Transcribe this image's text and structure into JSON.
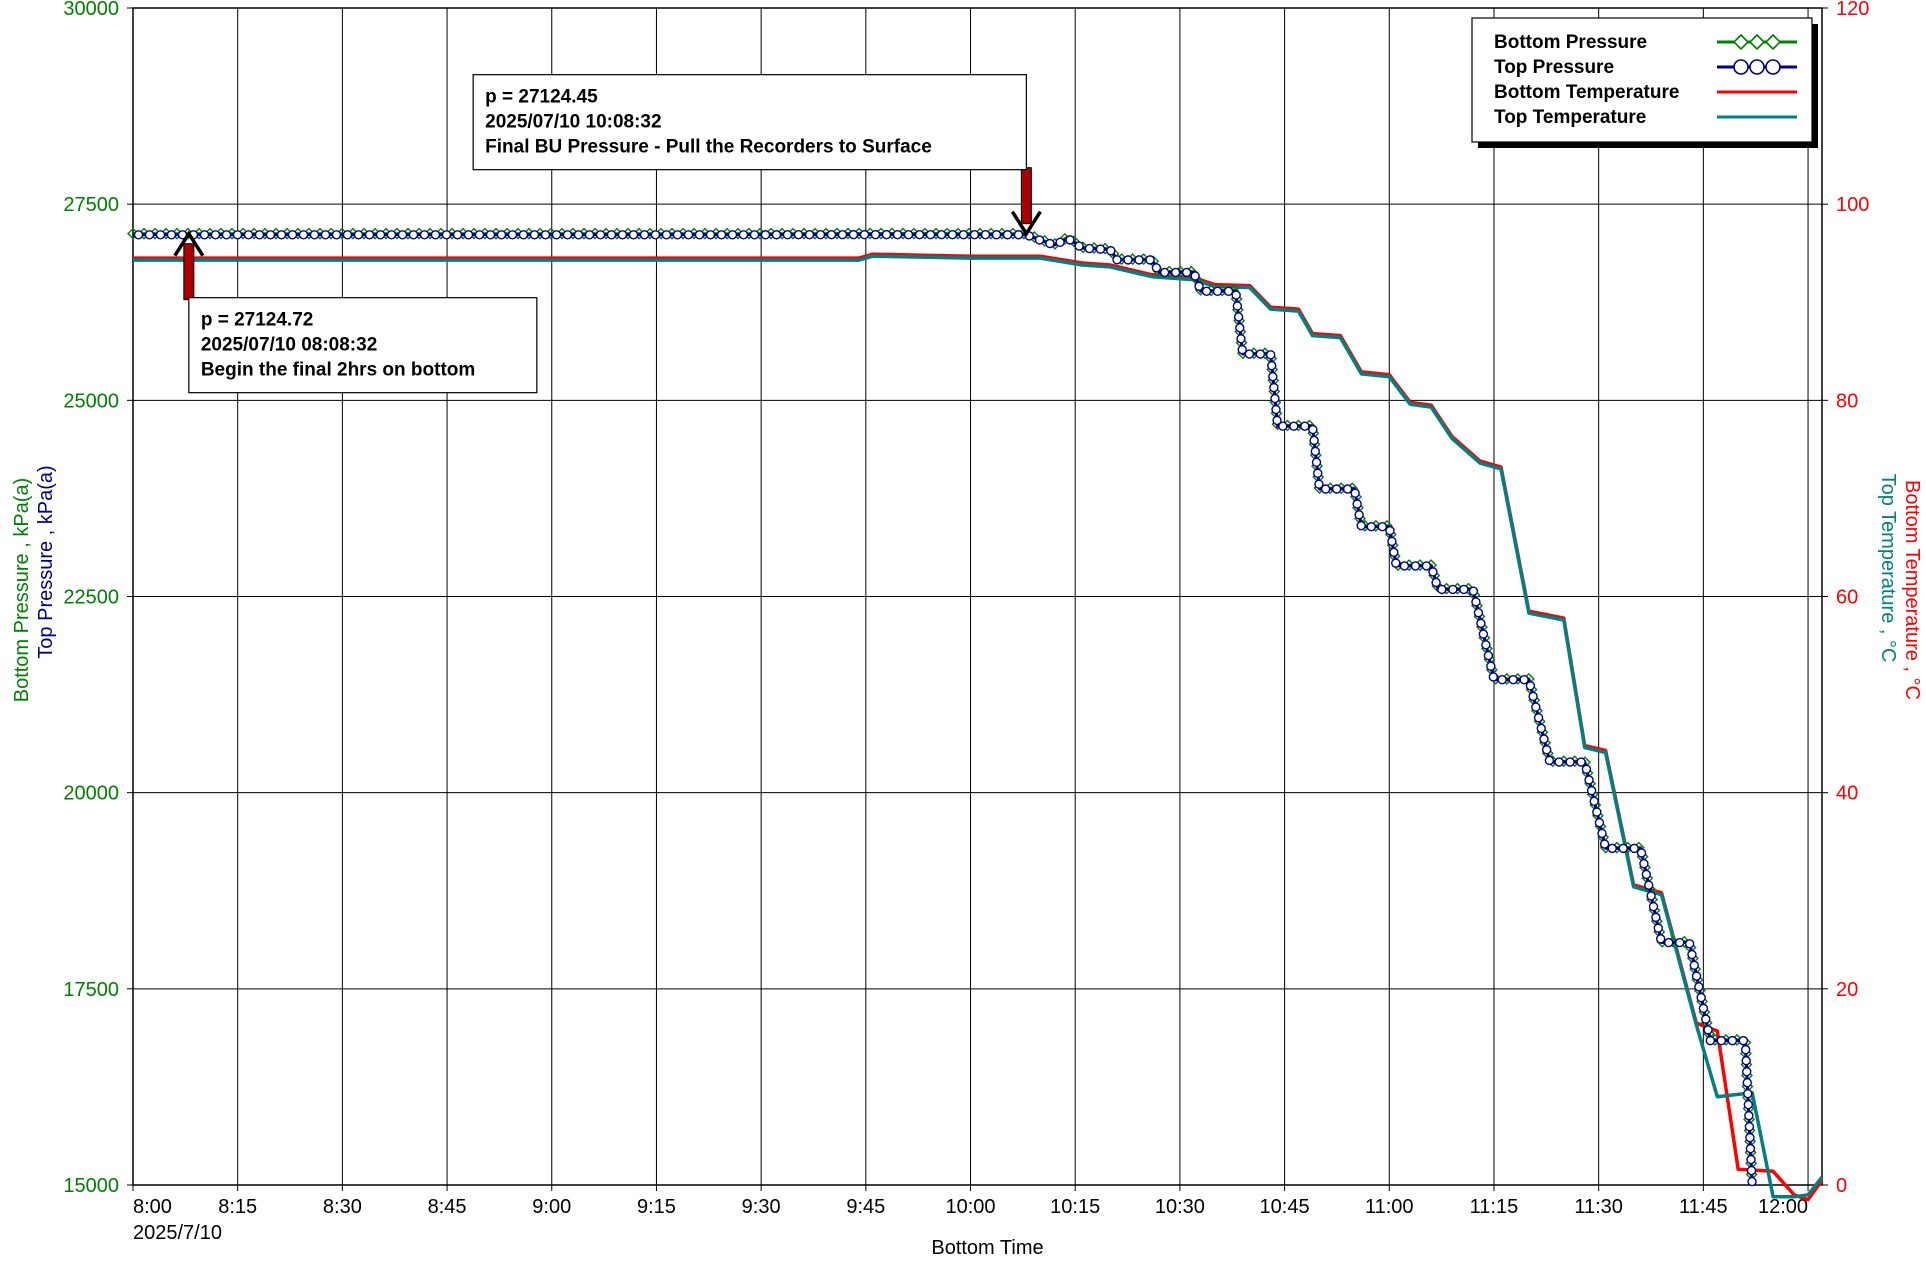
{
  "chart_data": {
    "type": "line",
    "title": "",
    "xlabel": "Bottom Time",
    "x_start_label": "2025/7/10",
    "x_ticks": [
      "8:00",
      "8:15",
      "8:30",
      "8:45",
      "9:00",
      "9:15",
      "9:30",
      "9:45",
      "10:00",
      "10:15",
      "10:30",
      "10:45",
      "11:00",
      "11:15",
      "11:30",
      "11:45",
      "12:00"
    ],
    "x_range": [
      "08:00",
      "12:02"
    ],
    "y_left": {
      "labels": [
        "Bottom Pressure , kPa(a)",
        "Top Pressure , kPa(a)"
      ],
      "label_colors": [
        "#008000",
        "#000080"
      ],
      "range": [
        15000,
        30000
      ],
      "ticks": [
        15000,
        17500,
        20000,
        22500,
        25000,
        27500,
        30000
      ],
      "tick_color": "#008000"
    },
    "y_right": {
      "labels": [
        "Bottom Temperature , °C",
        "Top Temperature , °C"
      ],
      "label_colors": [
        "#ff0000",
        "#008080"
      ],
      "range": [
        0,
        120
      ],
      "ticks": [
        0,
        20,
        40,
        60,
        80,
        100,
        120
      ],
      "tick_color": "#ff0000"
    },
    "grid": true,
    "legend_position": "top-right",
    "series": [
      {
        "name": "Bottom Pressure",
        "axis": "left",
        "color": "#008000",
        "marker": "diamond",
        "points": [
          [
            "08:00",
            27124
          ],
          [
            "08:30",
            27124
          ],
          [
            "09:00",
            27124
          ],
          [
            "09:30",
            27124
          ],
          [
            "09:45",
            27126
          ],
          [
            "10:08",
            27124
          ],
          [
            "10:10",
            27050
          ],
          [
            "10:12",
            26990
          ],
          [
            "10:14",
            27080
          ],
          [
            "10:16",
            26950
          ],
          [
            "10:20",
            26930
          ],
          [
            "10:21",
            26800
          ],
          [
            "10:26",
            26800
          ],
          [
            "10:27",
            26640
          ],
          [
            "10:32",
            26640
          ],
          [
            "10:33",
            26400
          ],
          [
            "10:38",
            26400
          ],
          [
            "10:39",
            25600
          ],
          [
            "10:43",
            25600
          ],
          [
            "10:44",
            24680
          ],
          [
            "10:49",
            24680
          ],
          [
            "10:50",
            23880
          ],
          [
            "10:55",
            23880
          ],
          [
            "10:56",
            23400
          ],
          [
            "11:00",
            23400
          ],
          [
            "11:01",
            22900
          ],
          [
            "11:06",
            22900
          ],
          [
            "11:07",
            22600
          ],
          [
            "11:12",
            22600
          ],
          [
            "11:15",
            21450
          ],
          [
            "11:20",
            21450
          ],
          [
            "11:23",
            20400
          ],
          [
            "11:28",
            20400
          ],
          [
            "11:31",
            19300
          ],
          [
            "11:36",
            19300
          ],
          [
            "11:39",
            18100
          ],
          [
            "11:43",
            18100
          ],
          [
            "11:46",
            16850
          ],
          [
            "11:51",
            16850
          ],
          [
            "11:52",
            15000
          ]
        ]
      },
      {
        "name": "Top Pressure",
        "axis": "left",
        "color": "#000080",
        "marker": "circle",
        "points": [
          [
            "08:00",
            27110
          ],
          [
            "08:30",
            27110
          ],
          [
            "09:00",
            27110
          ],
          [
            "09:30",
            27110
          ],
          [
            "09:45",
            27112
          ],
          [
            "10:08",
            27110
          ],
          [
            "10:10",
            27040
          ],
          [
            "10:12",
            26980
          ],
          [
            "10:14",
            27060
          ],
          [
            "10:16",
            26940
          ],
          [
            "10:20",
            26920
          ],
          [
            "10:21",
            26790
          ],
          [
            "10:26",
            26790
          ],
          [
            "10:27",
            26630
          ],
          [
            "10:32",
            26630
          ],
          [
            "10:33",
            26390
          ],
          [
            "10:38",
            26390
          ],
          [
            "10:39",
            25590
          ],
          [
            "10:43",
            25590
          ],
          [
            "10:44",
            24670
          ],
          [
            "10:49",
            24670
          ],
          [
            "10:50",
            23870
          ],
          [
            "10:55",
            23870
          ],
          [
            "10:56",
            23390
          ],
          [
            "11:00",
            23390
          ],
          [
            "11:01",
            22890
          ],
          [
            "11:06",
            22890
          ],
          [
            "11:07",
            22590
          ],
          [
            "11:12",
            22590
          ],
          [
            "11:15",
            21440
          ],
          [
            "11:20",
            21440
          ],
          [
            "11:23",
            20390
          ],
          [
            "11:28",
            20390
          ],
          [
            "11:31",
            19290
          ],
          [
            "11:36",
            19290
          ],
          [
            "11:39",
            18090
          ],
          [
            "11:43",
            18090
          ],
          [
            "11:46",
            16840
          ],
          [
            "11:51",
            16840
          ],
          [
            "11:52",
            15000
          ]
        ]
      },
      {
        "name": "Bottom Temperature",
        "axis": "right",
        "color": "#ff0000",
        "marker": "none",
        "points": [
          [
            "08:00",
            94.5
          ],
          [
            "09:00",
            94.5
          ],
          [
            "09:44",
            94.5
          ],
          [
            "09:46",
            94.9
          ],
          [
            "10:00",
            94.7
          ],
          [
            "10:10",
            94.7
          ],
          [
            "10:16",
            94.0
          ],
          [
            "10:20",
            93.8
          ],
          [
            "10:26",
            92.8
          ],
          [
            "10:32",
            92.5
          ],
          [
            "10:35",
            91.8
          ],
          [
            "10:40",
            91.7
          ],
          [
            "10:43",
            89.5
          ],
          [
            "10:47",
            89.3
          ],
          [
            "10:49",
            86.8
          ],
          [
            "10:53",
            86.6
          ],
          [
            "10:56",
            82.9
          ],
          [
            "11:00",
            82.6
          ],
          [
            "11:03",
            79.8
          ],
          [
            "11:06",
            79.5
          ],
          [
            "11:09",
            76.3
          ],
          [
            "11:13",
            73.8
          ],
          [
            "11:16",
            73.2
          ],
          [
            "11:20",
            58.5
          ],
          [
            "11:25",
            57.8
          ],
          [
            "11:28",
            44.8
          ],
          [
            "11:31",
            44.3
          ],
          [
            "11:35",
            30.6
          ],
          [
            "11:39",
            29.8
          ],
          [
            "11:44",
            16.5
          ],
          [
            "11:47",
            15.7
          ],
          [
            "11:50",
            1.6
          ],
          [
            "11:55",
            1.4
          ],
          [
            "11:58",
            -1.0
          ],
          [
            "12:00",
            -1.5
          ],
          [
            "12:02",
            0.5
          ]
        ]
      },
      {
        "name": "Top Temperature",
        "axis": "right",
        "color": "#008080",
        "marker": "none",
        "points": [
          [
            "08:00",
            94.3
          ],
          [
            "09:00",
            94.3
          ],
          [
            "09:44",
            94.3
          ],
          [
            "09:46",
            94.7
          ],
          [
            "10:00",
            94.5
          ],
          [
            "10:10",
            94.5
          ],
          [
            "10:16",
            93.8
          ],
          [
            "10:20",
            93.6
          ],
          [
            "10:26",
            92.6
          ],
          [
            "10:32",
            92.3
          ],
          [
            "10:35",
            91.6
          ],
          [
            "10:40",
            91.5
          ],
          [
            "10:43",
            89.3
          ],
          [
            "10:47",
            89.1
          ],
          [
            "10:49",
            86.6
          ],
          [
            "10:53",
            86.4
          ],
          [
            "10:56",
            82.7
          ],
          [
            "11:00",
            82.4
          ],
          [
            "11:03",
            79.6
          ],
          [
            "11:06",
            79.3
          ],
          [
            "11:09",
            76.1
          ],
          [
            "11:13",
            73.6
          ],
          [
            "11:16",
            73.0
          ],
          [
            "11:20",
            58.3
          ],
          [
            "11:25",
            57.6
          ],
          [
            "11:28",
            44.6
          ],
          [
            "11:31",
            44.1
          ],
          [
            "11:35",
            30.4
          ],
          [
            "11:39",
            29.6
          ],
          [
            "11:44",
            16.3
          ],
          [
            "11:47",
            9.0
          ],
          [
            "11:52",
            9.4
          ],
          [
            "11:55",
            -1.2
          ],
          [
            "11:58",
            -1.2
          ],
          [
            "12:00",
            -1.0
          ],
          [
            "12:02",
            0.8
          ]
        ]
      }
    ],
    "annotations": [
      {
        "lines": [
          "p = 27124.72",
          "2025/07/10 08:08:32",
          "Begin the final 2hrs on bottom"
        ],
        "point": [
          "08:08",
          27124
        ],
        "arrow": "up",
        "box_anchor": "below-right"
      },
      {
        "lines": [
          "p = 27124.45",
          "2025/07/10 10:08:32",
          "Final BU Pressure - Pull the Recorders to Surface"
        ],
        "point": [
          "10:08",
          27124
        ],
        "arrow": "down",
        "box_anchor": "above-left"
      }
    ]
  }
}
